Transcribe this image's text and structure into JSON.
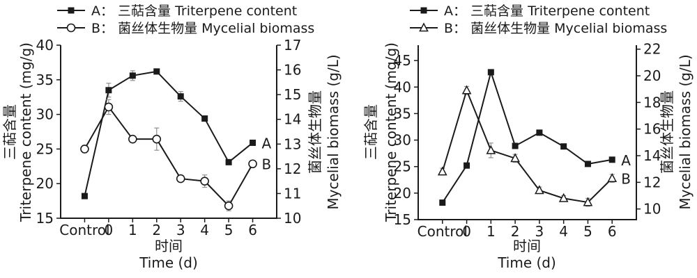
{
  "colors": {
    "ink": "#1a1a1a",
    "error_bar": "#8f8f8f",
    "background": "#ffffff"
  },
  "chart_data": [
    {
      "type": "line",
      "categories": [
        "Control",
        "0",
        "1",
        "2",
        "3",
        "4",
        "5",
        "6"
      ],
      "x_axis": {
        "label_zh": "时间",
        "label_en": "Time (d)"
      },
      "left_axis": {
        "title_zh": "三萜含量",
        "title_en": "Triterpene content (mg/g)",
        "ticks": [
          15,
          20,
          25,
          30,
          35,
          40
        ],
        "min": 15,
        "max": 40
      },
      "right_axis": {
        "title_zh": "菌丝体生物量",
        "title_en": "Mycelial biomass (g/L)",
        "ticks": [
          10,
          11,
          12,
          13,
          14,
          15,
          16,
          17
        ],
        "min": 10,
        "max": 17
      },
      "series": [
        {
          "name": "A",
          "label": "A： 三萜含量 Triterpene content",
          "marker": "filled-square",
          "axis": "left",
          "end_label": "A",
          "values": [
            18.2,
            33.5,
            35.6,
            36.2,
            32.6,
            29.4,
            23.1,
            25.9
          ],
          "errors": [
            0,
            1.0,
            0.7,
            0.3,
            0.7,
            0.3,
            0.3,
            0.2
          ]
        },
        {
          "name": "B",
          "label": "B： 菌丝体生物量 Mycelial biomass",
          "marker": "open-circle",
          "axis": "right",
          "end_label": "B",
          "values": [
            12.8,
            14.5,
            13.2,
            13.2,
            11.6,
            11.5,
            10.5,
            12.2
          ],
          "errors": [
            0.15,
            0.3,
            0.12,
            0.45,
            0.12,
            0.25,
            0.2,
            0.1
          ]
        }
      ]
    },
    {
      "type": "line",
      "categories": [
        "Control",
        "0",
        "1",
        "2",
        "3",
        "4",
        "5",
        "6"
      ],
      "x_axis": {
        "label_zh": "时间",
        "label_en": "Time (d)"
      },
      "left_axis": {
        "title_zh": "三萜含量",
        "title_en": "Triterpene content (mg/g)",
        "ticks": [
          15,
          20,
          25,
          30,
          35,
          40,
          45
        ],
        "min": 15,
        "max": 47.9
      },
      "right_axis": {
        "title_zh": "菌丝体生物量",
        "title_en": "Mycelial biomass (g/L)",
        "ticks": [
          10,
          12,
          14,
          16,
          18,
          20,
          22
        ],
        "min": 9.2,
        "max": 22.3
      },
      "series": [
        {
          "name": "A",
          "label": "A： 三萜含量 Triterpene content",
          "marker": "filled-square",
          "axis": "left",
          "end_label": "A",
          "values": [
            18.2,
            25.2,
            42.8,
            28.9,
            31.4,
            28.8,
            25.5,
            26.3
          ],
          "errors": [
            0.2,
            0.2,
            0.3,
            0.2,
            0.3,
            0.3,
            0.2,
            0.2
          ]
        },
        {
          "name": "B",
          "label": "B： 菌丝体生物量 Mycelial biomass",
          "marker": "open-triangle",
          "axis": "right",
          "end_label": "B",
          "values": [
            12.8,
            18.9,
            14.4,
            13.8,
            11.4,
            10.8,
            10.5,
            12.3
          ],
          "errors": [
            0.25,
            0.3,
            0.55,
            0.3,
            0.25,
            0.2,
            0.3,
            0.3
          ]
        }
      ]
    }
  ]
}
